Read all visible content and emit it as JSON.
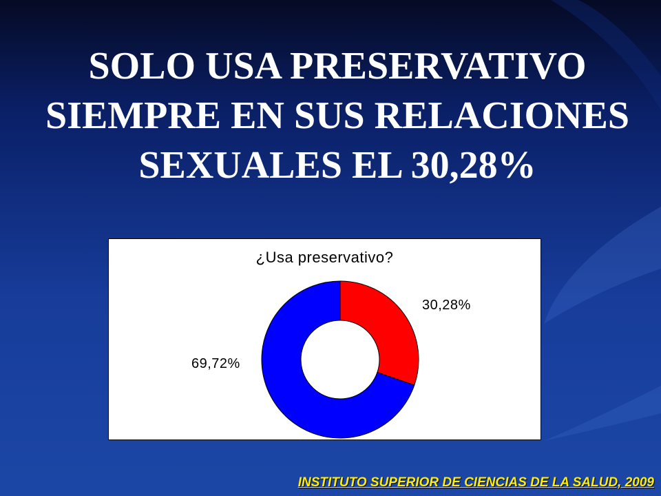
{
  "slide": {
    "title_lines": [
      "SOLO USA PRESERVATIVO",
      "SIEMPRE EN SUS RELACIONES",
      "SEXUALES EL 30,28%"
    ],
    "footer": "INSTITUTO SUPERIOR DE CIENCIAS DE LA SALUD, 2009"
  },
  "chart_data": {
    "type": "pie",
    "subtype": "doughnut",
    "title": "¿Usa preservativo?",
    "legend": "none",
    "slices": [
      {
        "value": 30.28,
        "label": "30,28%",
        "color": "#ff0000"
      },
      {
        "value": 69.72,
        "label": "69,72%",
        "color": "#0000ff"
      }
    ]
  }
}
